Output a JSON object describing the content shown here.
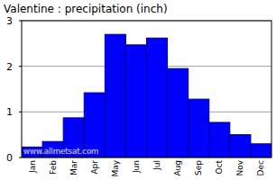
{
  "chart_data": {
    "type": "bar",
    "title": "Valentine : precipitation (inch)",
    "categories": [
      "Jan",
      "Feb",
      "Mar",
      "Apr",
      "May",
      "Jun",
      "Jul",
      "Aug",
      "Sep",
      "Oct",
      "Nov",
      "Dec"
    ],
    "values": [
      0.23,
      0.35,
      0.87,
      1.42,
      2.7,
      2.47,
      2.62,
      1.95,
      1.28,
      0.77,
      0.5,
      0.3
    ],
    "color": "#0000ff",
    "ylim": [
      0,
      3
    ],
    "yticks": [
      0,
      1,
      2,
      3
    ],
    "grid": true,
    "annotations": [
      "www.allmetsat.com"
    ]
  }
}
